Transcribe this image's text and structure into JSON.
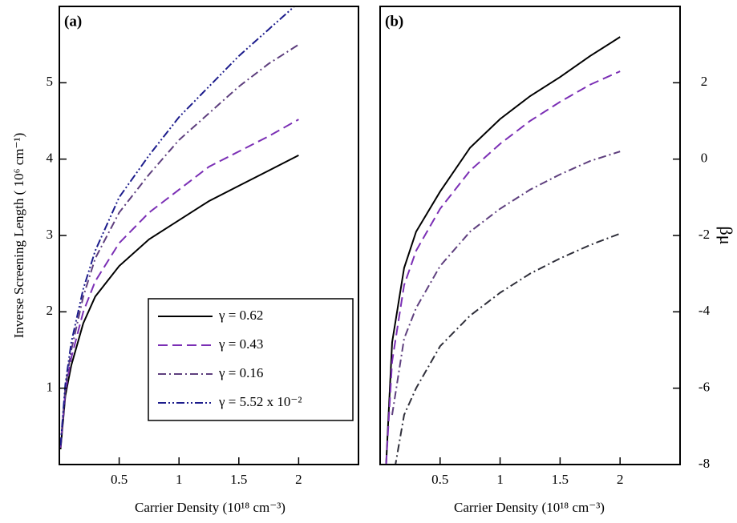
{
  "chart_data": [
    {
      "type": "line",
      "title": "(a)",
      "xlabel": "Carrier Density (10¹⁸ cm⁻³)",
      "ylabel": "Inverse Screening Length ( 10⁶ cm⁻¹)",
      "x": [
        0.01,
        0.05,
        0.1,
        0.2,
        0.3,
        0.5,
        0.75,
        1,
        1.25,
        1.5,
        1.75,
        2
      ],
      "xlim": [
        0,
        2.5
      ],
      "xticks": [
        0.5,
        1,
        1.5,
        2
      ],
      "ylim": [
        0,
        6
      ],
      "yticks": [
        1,
        2,
        3,
        4,
        5
      ],
      "y_axis_side": "left",
      "legend": "lower right",
      "series": [
        {
          "name": "γ = 0.62",
          "color": "#000000",
          "style": "solid",
          "values": [
            0.2,
            0.9,
            1.3,
            1.85,
            2.2,
            2.6,
            2.95,
            3.2,
            3.45,
            3.65,
            3.85,
            4.05
          ]
        },
        {
          "name": "γ  = 0.43",
          "color": "#7b2fb5",
          "style": "dashed",
          "values": [
            0.22,
            0.95,
            1.4,
            2.0,
            2.4,
            2.9,
            3.3,
            3.6,
            3.9,
            4.1,
            4.3,
            4.52
          ]
        },
        {
          "name": "γ = 0.16",
          "color": "#5e3f7e",
          "style": "dashdot",
          "values": [
            0.25,
            1.0,
            1.5,
            2.2,
            2.7,
            3.3,
            3.8,
            4.25,
            4.6,
            4.95,
            5.25,
            5.5
          ]
        },
        {
          "name": "γ = 5.52 x 10⁻²",
          "color": "#1c1c8c",
          "style": "dashdotdot",
          "values": [
            0.25,
            1.05,
            1.6,
            2.3,
            2.8,
            3.5,
            4.05,
            4.55,
            4.95,
            5.35,
            5.7,
            6.05
          ]
        }
      ]
    },
    {
      "type": "line",
      "title": "(b)",
      "xlabel": "Carrier Density (10¹⁸ cm⁻³)",
      "ylabel": "βμ",
      "x": [
        0.05,
        0.1,
        0.2,
        0.3,
        0.5,
        0.75,
        1,
        1.25,
        1.5,
        1.75,
        2
      ],
      "xlim": [
        0,
        2.5
      ],
      "xticks": [
        0.5,
        1,
        1.5,
        2
      ],
      "ylim": [
        -8,
        4
      ],
      "yticks": [
        -8,
        -6,
        -4,
        -2,
        0,
        2
      ],
      "y_axis_side": "right",
      "series": [
        {
          "color": "#000000",
          "style": "solid",
          "values": [
            -8,
            -4.8,
            -2.85,
            -1.9,
            -0.85,
            0.3,
            1.05,
            1.65,
            2.15,
            2.7,
            3.2
          ]
        },
        {
          "color": "#7b2fb5",
          "style": "dashed",
          "values": [
            -8,
            -5.3,
            -3.3,
            -2.4,
            -1.3,
            -0.3,
            0.4,
            1.0,
            1.5,
            1.95,
            2.3
          ]
        },
        {
          "color": "#5e3f7e",
          "style": "dashdot",
          "values": [
            null,
            -6.7,
            -4.7,
            -3.9,
            -2.8,
            -1.9,
            -1.3,
            -0.8,
            -0.4,
            -0.05,
            0.2
          ]
        },
        {
          "color": "#2f2f3a",
          "style": "dashdot",
          "values": [
            null,
            -8.5,
            -6.7,
            -6.0,
            -4.9,
            -4.1,
            -3.5,
            -3.0,
            -2.6,
            -2.25,
            -1.95
          ]
        }
      ]
    }
  ]
}
